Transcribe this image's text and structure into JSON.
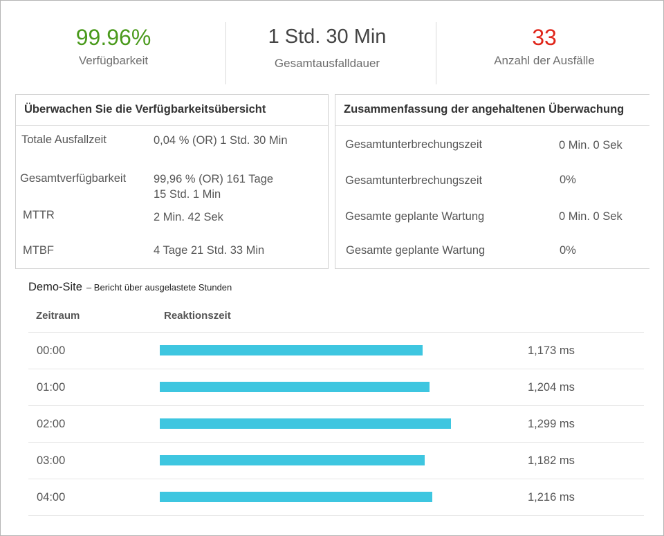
{
  "stats": [
    {
      "value": "99.96%",
      "label": "Verfügbarkeit",
      "color": "#4a9a1c"
    },
    {
      "value": "1 Std. 30 Min",
      "label": "Gesamtausfalldauer",
      "color": "#444444"
    },
    {
      "value": "33",
      "label": "Anzahl der Ausfälle",
      "color": "#e0261b"
    }
  ],
  "left_panel": {
    "title": "Überwachen Sie die Verfügbarkeitsübersicht",
    "rows": [
      {
        "label": "Totale Ausfallzeit",
        "value": "0,04 % (OR) 1 Std. 30 Min"
      },
      {
        "label": "Gesamtverfügbarkeit",
        "value": "99,96 % (OR) 161 Tage",
        "value2": "15 Std. 1 Min"
      },
      {
        "label": "MTTR",
        "value": "2 Min. 42 Sek"
      },
      {
        "label": "MTBF",
        "value": "4 Tage 21 Std. 33 Min"
      }
    ]
  },
  "right_panel": {
    "title": "Zusammenfassung der angehaltenen Überwachung",
    "rows": [
      {
        "label": "Gesamtunterbrechungszeit",
        "value": "0 Min. 0 Sek"
      },
      {
        "label": "Gesamtunterbrechungszeit",
        "value": "0%"
      },
      {
        "label": "Gesamte geplante Wartung",
        "value": "0 Min. 0 Sek"
      },
      {
        "label": "Gesamte geplante Wartung",
        "value": "0%"
      }
    ]
  },
  "report": {
    "site": "Demo-Site",
    "subtitle": "– Bericht über ausgelastete Stunden",
    "col_period": "Zeitraum",
    "col_response": "Reaktionszeit",
    "bar_color": "#3ec6e0",
    "max_ms": 1299,
    "rows": [
      {
        "time": "00:00",
        "ms": 1173,
        "ms_label": "1,173 ms"
      },
      {
        "time": "01:00",
        "ms": 1204,
        "ms_label": "1,204 ms"
      },
      {
        "time": "02:00",
        "ms": 1299,
        "ms_label": "1,299 ms"
      },
      {
        "time": "03:00",
        "ms": 1182,
        "ms_label": "1,182 ms"
      },
      {
        "time": "04:00",
        "ms": 1216,
        "ms_label": "1,216 ms"
      }
    ]
  }
}
